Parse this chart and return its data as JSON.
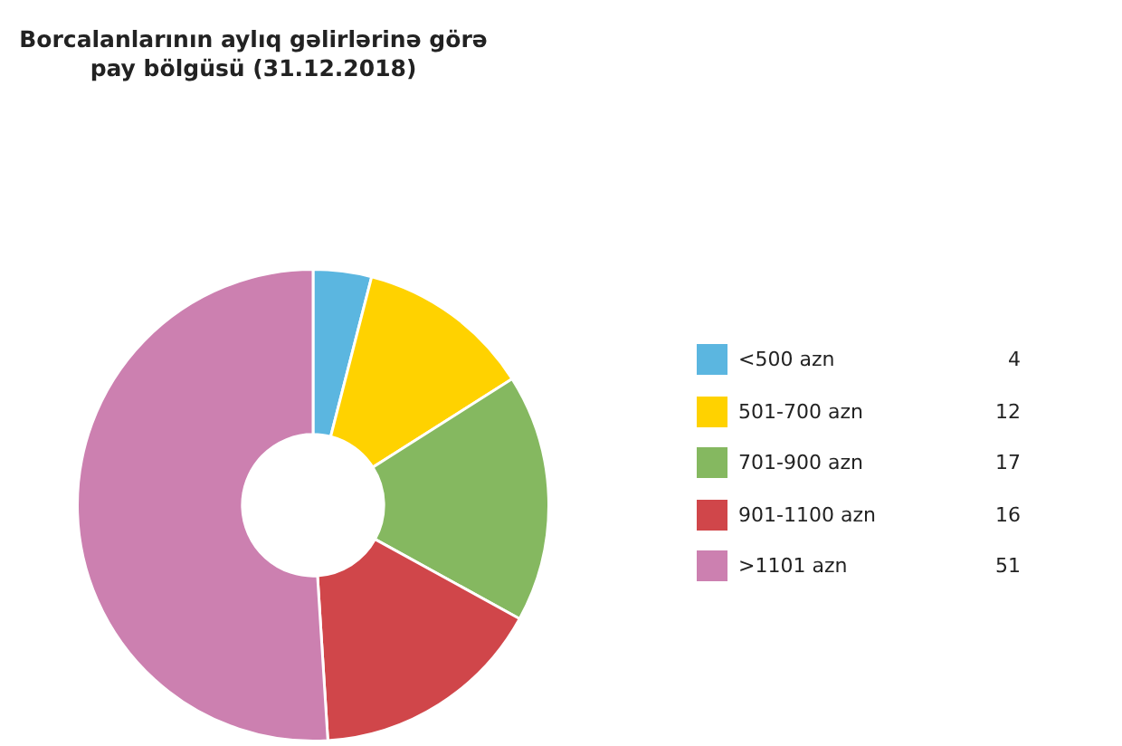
{
  "chart_data": {
    "type": "donut",
    "title": "Borcalanlarının aylıq gəlirlərinə görə pay bölgüsü (31.12.2018)",
    "categories": [
      "<500 azn",
      "501-700 azn",
      "701-900 azn",
      "901-1100 azn",
      ">1101 azn"
    ],
    "values": [
      4,
      12,
      17,
      16,
      51
    ],
    "colors": [
      "#5bb6e0",
      "#ffd200",
      "#85b860",
      "#d0464a",
      "#cc80b0"
    ],
    "legend": "right",
    "data_labels": true
  }
}
